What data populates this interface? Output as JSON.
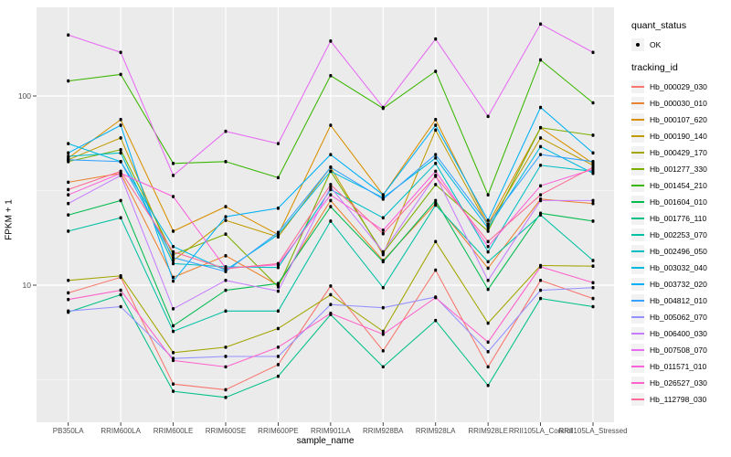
{
  "panel": {
    "bg": "#EBEBEB",
    "grid_color": "#FFFFFF",
    "tick_color": "#333333",
    "tick_label_color": "#4D4D4D"
  },
  "legend": {
    "quant_status_title": "quant_status",
    "quant_status_items": [
      {
        "label": "OK"
      }
    ],
    "tracking_title": "tracking_id"
  },
  "chart_data": {
    "type": "line",
    "title": "",
    "xlabel": "sample_name",
    "ylabel": "FPKM + 1",
    "y_scale": "log10",
    "y_ticks": [
      100,
      10
    ],
    "y_minor_ticks": [
      31.62,
      3.162
    ],
    "ylim": [
      1.9,
      295
    ],
    "grid": true,
    "legend_position": "right",
    "marker": "black-point",
    "categories": [
      "PB350LA",
      "RRIM600LA",
      "RRIM600LE",
      "RRIM600SE",
      "RRIM600PE",
      "RRIM901LA",
      "RRIM928BA",
      "RRIM928LA",
      "RRIM928LE",
      "RRII105LA_Control",
      "RRII105LA_Stressed"
    ],
    "series": [
      {
        "name": "Hb_000029_030",
        "color": "#F8766D",
        "values": [
          9.1,
          11,
          3.0,
          2.8,
          3.8,
          9.9,
          4.5,
          12,
          3.7,
          10.6,
          8.5
        ]
      },
      {
        "name": "Hb_000030_010",
        "color": "#EA8331",
        "values": [
          35,
          39,
          11,
          14.3,
          10,
          28,
          13.5,
          27,
          12.3,
          28.5,
          27
        ]
      },
      {
        "name": "Hb_000107_620",
        "color": "#D89000",
        "values": [
          47,
          75,
          19.3,
          26,
          18.5,
          70,
          30,
          75,
          21,
          68,
          44
        ]
      },
      {
        "name": "Hb_000190_140",
        "color": "#C09B00",
        "values": [
          46,
          60,
          13.5,
          22,
          18,
          42,
          14.5,
          66,
          20.5,
          60,
          43
        ]
      },
      {
        "name": "Hb_000429_170",
        "color": "#A3A500",
        "values": [
          10.6,
          11.2,
          4.4,
          4.7,
          5.9,
          8.9,
          5.7,
          17,
          6.3,
          12.7,
          12.6
        ]
      },
      {
        "name": "Hb_001277_330",
        "color": "#7CAE00",
        "values": [
          45,
          52,
          14.5,
          18.6,
          9.8,
          40,
          14.8,
          34,
          19.3,
          68,
          62
        ]
      },
      {
        "name": "Hb_001454_210",
        "color": "#39B600",
        "values": [
          120,
          130,
          44,
          45,
          37,
          128,
          86,
          135,
          30,
          155,
          92
        ]
      },
      {
        "name": "Hb_001604_010",
        "color": "#00BB4E",
        "values": [
          23.5,
          28,
          6.1,
          9.4,
          10.2,
          26,
          13.3,
          28,
          9.5,
          24,
          21.8
        ]
      },
      {
        "name": "Hb_001776_110",
        "color": "#00C087",
        "values": [
          7.2,
          8.9,
          2.75,
          2.55,
          3.3,
          7.0,
          3.7,
          6.5,
          2.95,
          8.5,
          7.7
        ]
      },
      {
        "name": "Hb_002253_070",
        "color": "#00C1A3",
        "values": [
          19.3,
          22.7,
          5.7,
          7.3,
          7.3,
          21.8,
          9.7,
          26.5,
          13.3,
          23.5,
          13.5
        ]
      },
      {
        "name": "Hb_002496_050",
        "color": "#00BFC4",
        "values": [
          48,
          50,
          13,
          12.5,
          12.4,
          32,
          22.7,
          44,
          15,
          43,
          40
        ]
      },
      {
        "name": "Hb_003032_040",
        "color": "#00BAE0",
        "values": [
          56,
          45,
          16,
          12,
          18.5,
          40,
          29,
          47,
          20,
          54,
          39
        ]
      },
      {
        "name": "Hb_003732_020",
        "color": "#00B0F6",
        "values": [
          50,
          70,
          10.5,
          23,
          25.5,
          49,
          30,
          70,
          22,
          87,
          50
        ]
      },
      {
        "name": "Hb_004812_010",
        "color": "#35A2FF",
        "values": [
          46,
          45,
          14,
          11.8,
          19,
          42,
          28.5,
          49,
          21,
          49,
          45
        ]
      },
      {
        "name": "Hb_005062_070",
        "color": "#9590FF",
        "values": [
          7.3,
          7.7,
          4.1,
          4.2,
          4.2,
          7.9,
          7.6,
          8.65,
          4.45,
          9.4,
          9.7
        ]
      },
      {
        "name": "Hb_006400_030",
        "color": "#C77CFF",
        "values": [
          27,
          38,
          7.5,
          10.6,
          9.3,
          33,
          15,
          38,
          10.6,
          28,
          28
        ]
      },
      {
        "name": "Hb_007508_070",
        "color": "#E76BF3",
        "values": [
          210,
          170,
          38,
          65,
          56,
          195,
          87,
          200,
          78,
          240,
          170
        ]
      },
      {
        "name": "Hb_011571_010",
        "color": "#FA62DB",
        "values": [
          30,
          39,
          29.4,
          12.3,
          12.8,
          30,
          19.5,
          40,
          16,
          33.5,
          41
        ]
      },
      {
        "name": "Hb_026527_030",
        "color": "#FF61CC",
        "values": [
          8.4,
          9.4,
          4.0,
          3.7,
          4.7,
          7.1,
          5.5,
          8.6,
          5.0,
          12.5,
          10.3
        ]
      },
      {
        "name": "Hb_112798_030",
        "color": "#FF6A98",
        "values": [
          32,
          40,
          15,
          12.2,
          13,
          34,
          18.7,
          37.6,
          17,
          30,
          42
        ]
      }
    ]
  }
}
